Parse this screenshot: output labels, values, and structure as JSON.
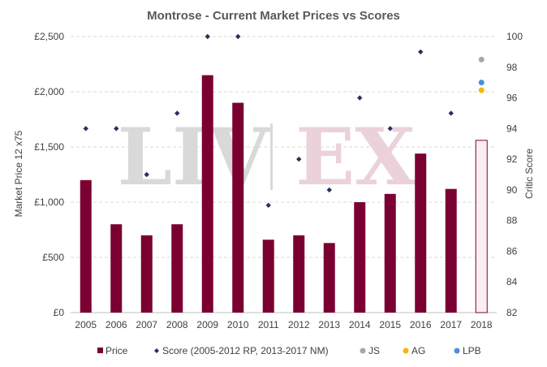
{
  "chart_data": {
    "type": "bar",
    "title": "Montrose - Current Market Prices vs Scores",
    "ylabel": "Market Price 12 x75",
    "y2label": "Critic Score",
    "categories": [
      "2005",
      "2006",
      "2007",
      "2008",
      "2009",
      "2010",
      "2011",
      "2012",
      "2013",
      "2014",
      "2015",
      "2016",
      "2017",
      "2018"
    ],
    "ylim": [
      0,
      2500
    ],
    "y_ticks": [
      0,
      500,
      1000,
      1500,
      2000,
      2500
    ],
    "y_tick_labels": [
      "£0",
      "£500",
      "£1,000",
      "£1,500",
      "£2,000",
      "£2,500"
    ],
    "y2lim": [
      82,
      100
    ],
    "y2_ticks": [
      82,
      84,
      86,
      88,
      90,
      92,
      94,
      96,
      98,
      100
    ],
    "grid": true,
    "legend_position": "bottom",
    "colors": {
      "price": "#7b0032",
      "price_2018_fill": "#fbeef2",
      "score": "#2e2e5c",
      "js": "#a6a6a6",
      "ag": "#f5b800",
      "lpb": "#4a90d9",
      "watermark_liv": "#d9d9d9",
      "watermark_ex": "#ebd2da"
    },
    "series": [
      {
        "name": "Price",
        "kind": "bar",
        "values": [
          1200,
          800,
          700,
          800,
          2150,
          1900,
          660,
          700,
          630,
          1000,
          1075,
          1440,
          1120,
          1560
        ]
      },
      {
        "name": "Score (2005-2012 RP, 2013-2017 NM)",
        "kind": "scatter",
        "axis": "right",
        "values": [
          94,
          94,
          91,
          95,
          100,
          100,
          89,
          92,
          90,
          96,
          94,
          99,
          95,
          null
        ]
      },
      {
        "name": "JS",
        "kind": "scatter",
        "axis": "right",
        "category": "2018",
        "value": 98.5
      },
      {
        "name": "AG",
        "kind": "scatter",
        "axis": "right",
        "category": "2018",
        "value": 96.5
      },
      {
        "name": "LPB",
        "kind": "scatter",
        "axis": "right",
        "category": "2018",
        "value": 97
      }
    ],
    "watermark": {
      "left": "LIV",
      "right": "EX"
    }
  }
}
